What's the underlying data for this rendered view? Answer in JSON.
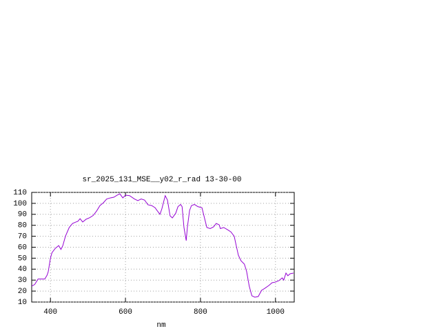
{
  "chart_data": {
    "type": "line",
    "title": "sr_2025_131_MSE__y02_r_rad 13-30-00",
    "x_label": "nm",
    "xlim": [
      350,
      1050
    ],
    "ylim": [
      10,
      110
    ],
    "xticks": [
      400,
      600,
      800,
      1000
    ],
    "yticks": [
      10,
      20,
      30,
      40,
      50,
      60,
      70,
      80,
      90,
      100,
      110
    ],
    "grid": true,
    "series": [
      {
        "color": "#9400d3",
        "x": [
          350,
          358,
          367,
          376,
          385,
          391,
          394,
          400,
          404,
          413,
          422,
          428,
          433,
          440,
          450,
          459,
          468,
          473,
          479,
          486,
          495,
          505,
          514,
          523,
          532,
          541,
          550,
          560,
          569,
          578,
          585,
          593,
          600,
          611,
          624,
          633,
          642,
          651,
          660,
          670,
          679,
          684,
          692,
          697,
          706,
          712,
          719,
          725,
          734,
          740,
          747,
          751,
          756,
          762,
          765,
          771,
          776,
          784,
          793,
          804,
          809,
          817,
          826,
          835,
          842,
          850,
          853,
          862,
          872,
          881,
          890,
          895,
          901,
          908,
          917,
          923,
          930,
          937,
          945,
          954,
          963,
          972,
          982,
          991,
          1000,
          1009,
          1018,
          1022,
          1028,
          1033,
          1039,
          1048
        ],
        "values": [
          24.5,
          26,
          31,
          31,
          31,
          34.5,
          37.5,
          50,
          55,
          59,
          61.5,
          58,
          61.5,
          70,
          78,
          81.7,
          83,
          83.6,
          86,
          83,
          85.5,
          87,
          89,
          93,
          98,
          100.5,
          104,
          105,
          105.6,
          107.5,
          108.7,
          105,
          107.5,
          107,
          104,
          102.5,
          104,
          103,
          98.7,
          98,
          96,
          93.6,
          90,
          95,
          107,
          103,
          88.6,
          86.7,
          91,
          97,
          99,
          97,
          78,
          66,
          78,
          93.6,
          98,
          99,
          97,
          96,
          89,
          78,
          77,
          78.6,
          81.7,
          80.4,
          77,
          78,
          76,
          74,
          70,
          62,
          52.8,
          47.7,
          44.6,
          38,
          24.5,
          15.7,
          14.4,
          15,
          20.7,
          22.6,
          25,
          27.6,
          28.2,
          29.5,
          32,
          30,
          36.4,
          34,
          35.8,
          36.4
        ]
      }
    ]
  }
}
